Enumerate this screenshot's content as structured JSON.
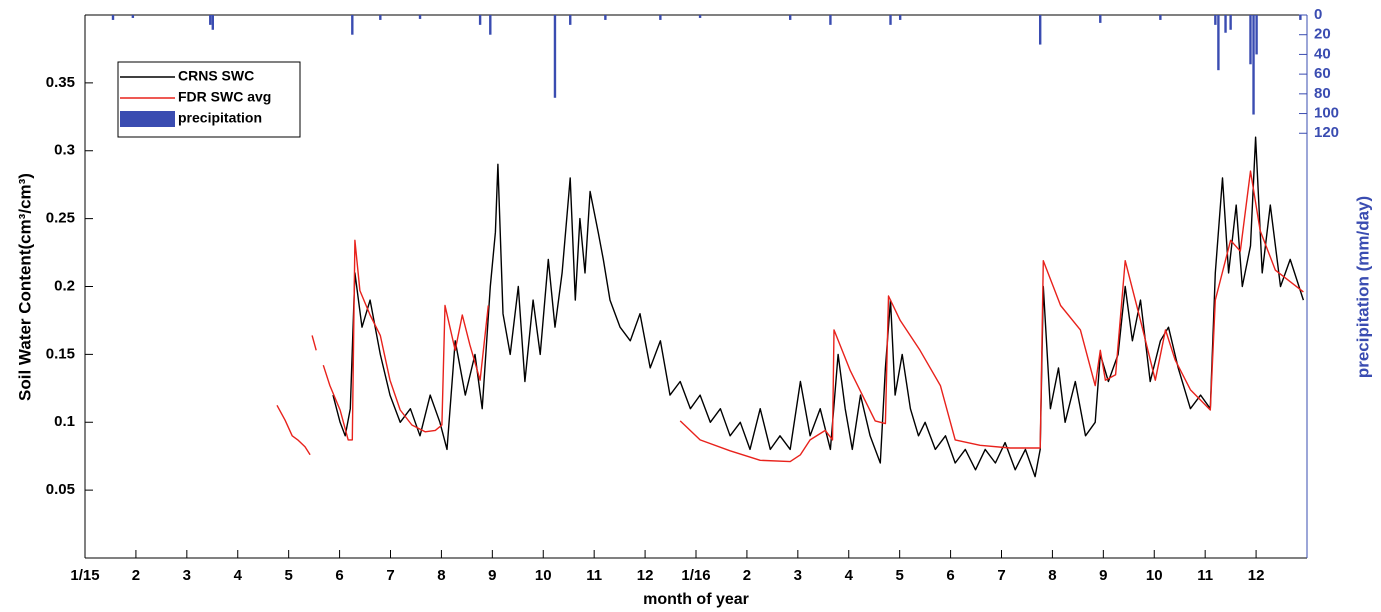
{
  "chart_data": {
    "type": "line",
    "xlabel": "month of year",
    "ylabel": "Soil Water Content(cm³/cm³)",
    "y2label": "precipitation (mm/day)",
    "xlim": [
      0,
      24
    ],
    "ylim": [
      0,
      0.4
    ],
    "y2lim": [
      0,
      551
    ],
    "y2_inverted": true,
    "legend": "upper left",
    "xticks": [
      {
        "value": 0,
        "label": "1/15"
      },
      {
        "value": 1,
        "label": "2"
      },
      {
        "value": 2,
        "label": "3"
      },
      {
        "value": 3,
        "label": "4"
      },
      {
        "value": 4,
        "label": "5"
      },
      {
        "value": 5,
        "label": "6"
      },
      {
        "value": 6,
        "label": "7"
      },
      {
        "value": 7,
        "label": "8"
      },
      {
        "value": 8,
        "label": "9"
      },
      {
        "value": 9,
        "label": "10"
      },
      {
        "value": 10,
        "label": "11"
      },
      {
        "value": 11,
        "label": "12"
      },
      {
        "value": 12,
        "label": "1/16"
      },
      {
        "value": 13,
        "label": "2"
      },
      {
        "value": 14,
        "label": "3"
      },
      {
        "value": 15,
        "label": "4"
      },
      {
        "value": 16,
        "label": "5"
      },
      {
        "value": 17,
        "label": "6"
      },
      {
        "value": 18,
        "label": "7"
      },
      {
        "value": 19,
        "label": "8"
      },
      {
        "value": 20,
        "label": "9"
      },
      {
        "value": 21,
        "label": "10"
      },
      {
        "value": 22,
        "label": "11"
      },
      {
        "value": 23,
        "label": "12"
      }
    ],
    "yticks": [
      0.05,
      0.1,
      0.15,
      0.2,
      0.25,
      0.3,
      0.35
    ],
    "y2ticks": [
      0,
      20,
      40,
      60,
      80,
      100,
      120
    ],
    "series": [
      {
        "name": "CRNS SWC",
        "color": "#000000",
        "type": "line",
        "x": [
          4.87,
          5.01,
          5.11,
          5.21,
          5.3,
          5.44,
          5.6,
          5.8,
          5.99,
          6.19,
          6.39,
          6.58,
          6.78,
          6.97,
          7.11,
          7.27,
          7.47,
          7.66,
          7.8,
          7.96,
          8.06,
          8.11,
          8.21,
          8.35,
          8.51,
          8.64,
          8.8,
          8.94,
          9.1,
          9.23,
          9.37,
          9.53,
          9.63,
          9.72,
          9.82,
          9.92,
          10.08,
          10.18,
          10.31,
          10.51,
          10.71,
          10.9,
          11.1,
          11.3,
          11.49,
          11.69,
          11.89,
          12.08,
          12.28,
          12.48,
          12.67,
          12.87,
          13.06,
          13.26,
          13.46,
          13.65,
          13.85,
          14.05,
          14.24,
          14.44,
          14.64,
          14.79,
          14.93,
          15.07,
          15.23,
          15.42,
          15.62,
          15.72,
          15.82,
          15.91,
          16.05,
          16.21,
          16.37,
          16.5,
          16.7,
          16.9,
          17.09,
          17.29,
          17.49,
          17.68,
          17.88,
          18.07,
          18.27,
          18.47,
          18.66,
          18.76,
          18.82,
          18.96,
          19.12,
          19.25,
          19.45,
          19.65,
          19.84,
          19.94,
          20.1,
          20.29,
          20.43,
          20.57,
          20.73,
          20.92,
          21.12,
          21.28,
          21.47,
          21.71,
          21.91,
          22.1,
          22.2,
          22.34,
          22.46,
          22.61,
          22.73,
          22.89,
          22.99,
          23.12,
          23.28,
          23.48,
          23.67,
          23.93
        ],
        "values": [
          0.12,
          0.1,
          0.09,
          0.11,
          0.21,
          0.17,
          0.19,
          0.15,
          0.12,
          0.1,
          0.11,
          0.09,
          0.12,
          0.1,
          0.08,
          0.16,
          0.12,
          0.15,
          0.11,
          0.2,
          0.24,
          0.29,
          0.18,
          0.15,
          0.2,
          0.13,
          0.19,
          0.15,
          0.22,
          0.17,
          0.21,
          0.28,
          0.19,
          0.25,
          0.21,
          0.27,
          0.24,
          0.22,
          0.19,
          0.17,
          0.16,
          0.18,
          0.14,
          0.16,
          0.12,
          0.13,
          0.11,
          0.12,
          0.1,
          0.11,
          0.09,
          0.1,
          0.08,
          0.11,
          0.08,
          0.09,
          0.08,
          0.13,
          0.09,
          0.11,
          0.08,
          0.15,
          0.11,
          0.08,
          0.12,
          0.09,
          0.07,
          0.14,
          0.19,
          0.12,
          0.15,
          0.11,
          0.09,
          0.1,
          0.08,
          0.09,
          0.07,
          0.08,
          0.065,
          0.08,
          0.07,
          0.085,
          0.065,
          0.08,
          0.06,
          0.08,
          0.2,
          0.11,
          0.14,
          0.1,
          0.13,
          0.09,
          0.1,
          0.15,
          0.13,
          0.15,
          0.2,
          0.16,
          0.19,
          0.13,
          0.16,
          0.17,
          0.14,
          0.11,
          0.12,
          0.11,
          0.21,
          0.28,
          0.21,
          0.26,
          0.2,
          0.23,
          0.31,
          0.21,
          0.26,
          0.2,
          0.22,
          0.19
        ]
      },
      {
        "name": "FDR SWC avg",
        "color": "#e8221c",
        "type": "line",
        "x": [
          3.77,
          3.93,
          4.07,
          4.18,
          4.32,
          4.42,
          4.44,
          4.46,
          4.54,
          4.6,
          4.68,
          4.81,
          5.01,
          5.17,
          5.25,
          5.3,
          5.4,
          5.6,
          5.8,
          5.99,
          6.19,
          6.42,
          6.68,
          6.88,
          7.01,
          7.07,
          7.27,
          7.41,
          7.56,
          7.76,
          7.92,
          9.8,
          11.69,
          12.08,
          12.67,
          13.26,
          13.85,
          14.05,
          14.24,
          14.54,
          14.68,
          14.71,
          15.03,
          15.52,
          15.72,
          15.78,
          16.01,
          16.4,
          16.8,
          17.09,
          17.58,
          18.17,
          18.76,
          18.82,
          19.16,
          19.55,
          19.84,
          19.94,
          20.04,
          20.24,
          20.43,
          20.73,
          21.02,
          21.22,
          21.41,
          21.71,
          22.1,
          22.2,
          22.5,
          22.69,
          22.89,
          23.08,
          23.38,
          23.93
        ],
        "values": [
          0.1125,
          0.1015,
          0.09,
          0.087,
          0.082,
          0.076,
          null,
          0.164,
          0.153,
          null,
          0.142,
          0.127,
          0.109,
          0.087,
          0.087,
          0.234,
          0.197,
          0.179,
          0.164,
          0.131,
          0.109,
          0.098,
          0.093,
          0.094,
          0.098,
          0.186,
          0.153,
          0.179,
          0.157,
          0.131,
          0.186,
          null,
          0.101,
          0.087,
          0.079,
          0.072,
          0.071,
          0.076,
          0.087,
          0.094,
          0.087,
          0.168,
          0.138,
          0.101,
          0.099,
          0.193,
          0.175,
          0.153,
          0.127,
          0.087,
          0.083,
          0.081,
          0.081,
          0.219,
          0.186,
          0.168,
          0.127,
          0.153,
          0.131,
          0.135,
          0.219,
          0.175,
          0.131,
          0.168,
          0.146,
          0.124,
          0.109,
          0.19,
          0.234,
          0.226,
          0.285,
          0.241,
          0.212,
          0.196
        ]
      },
      {
        "name": "precipitation",
        "color": "#3a4cb1",
        "type": "bar",
        "axis": "y2",
        "x": [
          0.55,
          0.94,
          2.46,
          2.51,
          5.25,
          5.8,
          6.58,
          7.76,
          7.96,
          9.23,
          9.53,
          10.22,
          11.3,
          12.08,
          13.85,
          14.64,
          15.82,
          16.01,
          18.76,
          19.94,
          21.12,
          22.2,
          22.26,
          22.4,
          22.5,
          22.89,
          22.95,
          23.01,
          23.87
        ],
        "values": [
          5,
          3,
          10,
          15,
          20,
          5,
          4,
          10,
          20,
          84,
          10,
          5,
          5,
          3,
          5,
          10,
          10,
          5,
          30,
          8,
          5,
          10,
          56,
          18,
          15,
          50,
          101,
          40,
          5
        ]
      }
    ]
  }
}
